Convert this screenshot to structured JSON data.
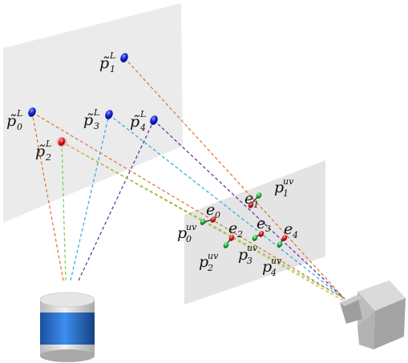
{
  "colors": {
    "lidar_plane": "#e9e9e9",
    "image_plane": "#e6e6e6",
    "point_blue": "#1414cc",
    "point_red": "#dd1a1a",
    "point_green": "#22bb44",
    "ray_orange": "#e0702a",
    "ray_green": "#7acc55",
    "ray_cyan": "#2aa9e0",
    "ray_purple": "#5a2a99",
    "ray_olive": "#c8b030",
    "lidar_blue": "#1f6fcf",
    "lidar_gray": "#d5d5d5",
    "camera_gray": "#b8b8b8"
  },
  "lidar_points": [
    {
      "id": "p0",
      "main": "p̃",
      "sup": "L",
      "sub": "0"
    },
    {
      "id": "p1",
      "main": "p̃",
      "sup": "L",
      "sub": "1"
    },
    {
      "id": "p2",
      "main": "p̃",
      "sup": "L",
      "sub": "2"
    },
    {
      "id": "p3",
      "main": "p̃",
      "sup": "L",
      "sub": "3"
    },
    {
      "id": "p4",
      "main": "p̃",
      "sup": "L",
      "sub": "4"
    }
  ],
  "image_points": [
    {
      "id": "uv0",
      "main": "p",
      "sup": "uv",
      "sub": "0"
    },
    {
      "id": "uv1",
      "main": "p",
      "sup": "uv",
      "sub": "1"
    },
    {
      "id": "uv2",
      "main": "p",
      "sup": "uv",
      "sub": "2"
    },
    {
      "id": "uv3",
      "main": "p",
      "sup": "uv",
      "sub": "3"
    },
    {
      "id": "uv4",
      "main": "p",
      "sup": "uv",
      "sub": "4"
    }
  ],
  "errors": [
    {
      "id": "e0",
      "main": "e",
      "sub": "0"
    },
    {
      "id": "e1",
      "main": "e",
      "sub": "1"
    },
    {
      "id": "e2",
      "main": "e",
      "sub": "2"
    },
    {
      "id": "e3",
      "main": "e",
      "sub": "3"
    },
    {
      "id": "e4",
      "main": "e",
      "sub": "4"
    }
  ]
}
